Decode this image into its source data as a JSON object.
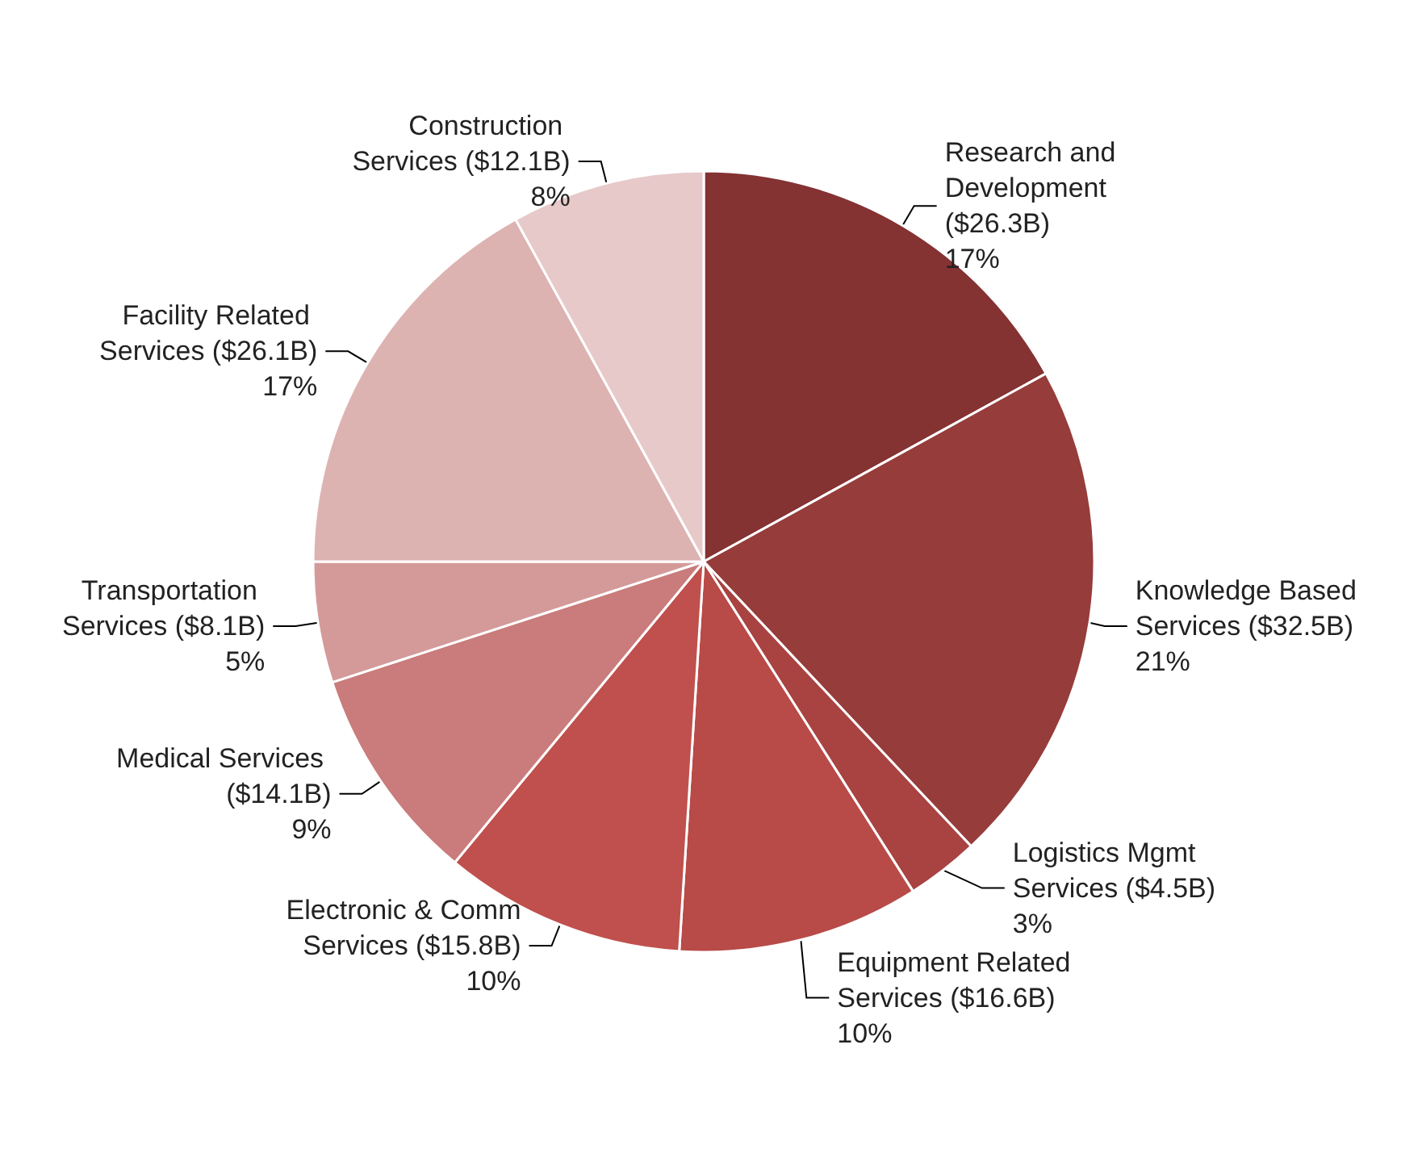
{
  "chart_data": {
    "type": "pie",
    "categories": [
      "Research and Development ($26.3B)",
      "Knowledge Based Services ($32.5B)",
      "Logistics Mgmt Services ($4.5B)",
      "Equipment Related Services ($16.6B)",
      "Electronic & Comm Services ($15.8B)",
      "Medical Services ($14.1B)",
      "Transportation Services ($8.1B)",
      "Facility Related Services ($26.1B)",
      "Construction Services ($12.1B)"
    ],
    "values": [
      17,
      21,
      3,
      10,
      10,
      9,
      5,
      17,
      8
    ],
    "value_labels": [
      "17%",
      "21%",
      "3%",
      "10%",
      "10%",
      "9%",
      "5%",
      "17%",
      "8%"
    ],
    "colors": [
      "#843232",
      "#963c3b",
      "#a84342",
      "#b84a48",
      "#c0504d",
      "#c97c7b",
      "#d39a99",
      "#ddb3b2",
      "#e7c9ca"
    ],
    "legend": false
  }
}
